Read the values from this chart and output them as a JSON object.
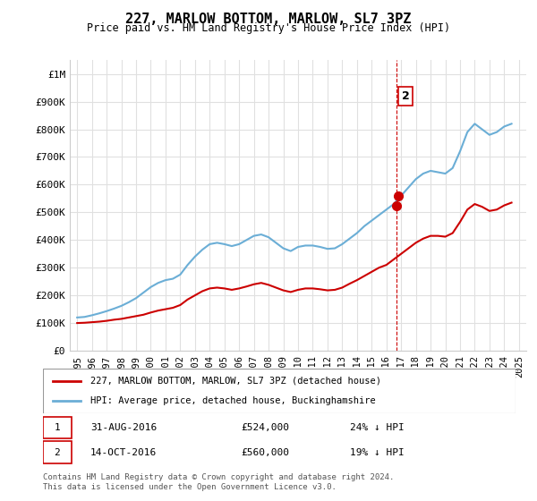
{
  "title": "227, MARLOW BOTTOM, MARLOW, SL7 3PZ",
  "subtitle": "Price paid vs. HM Land Registry's House Price Index (HPI)",
  "xlabel": "",
  "ylabel": "",
  "ylim": [
    0,
    1050000
  ],
  "yticks": [
    0,
    100000,
    200000,
    300000,
    400000,
    500000,
    600000,
    700000,
    800000,
    900000,
    1000000
  ],
  "ytick_labels": [
    "£0",
    "£100K",
    "£200K",
    "£300K",
    "£400K",
    "£500K",
    "£600K",
    "£700K",
    "£800K",
    "£900K",
    "£1M"
  ],
  "hpi_color": "#6baed6",
  "price_color": "#cc0000",
  "marker1_color": "#cc0000",
  "marker2_color": "#cc0000",
  "vline_color": "#cc0000",
  "background_color": "#ffffff",
  "grid_color": "#e0e0e0",
  "transaction1": {
    "date": "31-AUG-2016",
    "price": 524000,
    "hpi_diff": "24% ↓ HPI",
    "label": "1"
  },
  "transaction2": {
    "date": "14-OCT-2016",
    "price": 560000,
    "hpi_diff": "19% ↓ HPI",
    "label": "2"
  },
  "legend_line1": "227, MARLOW BOTTOM, MARLOW, SL7 3PZ (detached house)",
  "legend_line2": "HPI: Average price, detached house, Buckinghamshire",
  "footer": "Contains HM Land Registry data © Crown copyright and database right 2024.\nThis data is licensed under the Open Government Licence v3.0.",
  "hpi_x": [
    1995.0,
    1995.5,
    1996.0,
    1996.5,
    1997.0,
    1997.5,
    1998.0,
    1998.5,
    1999.0,
    1999.5,
    2000.0,
    2000.5,
    2001.0,
    2001.5,
    2002.0,
    2002.5,
    2003.0,
    2003.5,
    2004.0,
    2004.5,
    2005.0,
    2005.5,
    2006.0,
    2006.5,
    2007.0,
    2007.5,
    2008.0,
    2008.5,
    2009.0,
    2009.5,
    2010.0,
    2010.5,
    2011.0,
    2011.5,
    2012.0,
    2012.5,
    2013.0,
    2013.5,
    2014.0,
    2014.5,
    2015.0,
    2015.5,
    2016.0,
    2016.5,
    2017.0,
    2017.5,
    2018.0,
    2018.5,
    2019.0,
    2019.5,
    2020.0,
    2020.5,
    2021.0,
    2021.5,
    2022.0,
    2022.5,
    2023.0,
    2023.5,
    2024.0,
    2024.5
  ],
  "hpi_y": [
    120000,
    122000,
    128000,
    135000,
    143000,
    152000,
    162000,
    175000,
    190000,
    210000,
    230000,
    245000,
    255000,
    260000,
    275000,
    310000,
    340000,
    365000,
    385000,
    390000,
    385000,
    378000,
    385000,
    400000,
    415000,
    420000,
    410000,
    390000,
    370000,
    360000,
    375000,
    380000,
    380000,
    375000,
    368000,
    370000,
    385000,
    405000,
    425000,
    450000,
    470000,
    490000,
    510000,
    530000,
    560000,
    590000,
    620000,
    640000,
    650000,
    645000,
    640000,
    660000,
    720000,
    790000,
    820000,
    800000,
    780000,
    790000,
    810000,
    820000
  ],
  "price_x": [
    1995.0,
    1995.5,
    1996.0,
    1996.5,
    1997.0,
    1997.5,
    1998.0,
    1998.5,
    1999.0,
    1999.5,
    2000.0,
    2000.5,
    2001.0,
    2001.5,
    2002.0,
    2002.5,
    2003.0,
    2003.5,
    2004.0,
    2004.5,
    2005.0,
    2005.5,
    2006.0,
    2006.5,
    2007.0,
    2007.5,
    2008.0,
    2008.5,
    2009.0,
    2009.5,
    2010.0,
    2010.5,
    2011.0,
    2011.5,
    2012.0,
    2012.5,
    2013.0,
    2013.5,
    2014.0,
    2014.5,
    2015.0,
    2015.5,
    2016.0,
    2016.5,
    2017.0,
    2017.5,
    2018.0,
    2018.5,
    2019.0,
    2019.5,
    2020.0,
    2020.5,
    2021.0,
    2021.5,
    2022.0,
    2022.5,
    2023.0,
    2023.5,
    2024.0,
    2024.5
  ],
  "price_y": [
    100000,
    101000,
    103000,
    105000,
    108000,
    112000,
    115000,
    120000,
    125000,
    130000,
    138000,
    145000,
    150000,
    155000,
    165000,
    185000,
    200000,
    215000,
    225000,
    228000,
    225000,
    220000,
    225000,
    232000,
    240000,
    245000,
    238000,
    228000,
    218000,
    212000,
    220000,
    225000,
    225000,
    222000,
    218000,
    220000,
    228000,
    242000,
    255000,
    270000,
    285000,
    300000,
    310000,
    330000,
    350000,
    370000,
    390000,
    405000,
    415000,
    415000,
    412000,
    425000,
    465000,
    510000,
    530000,
    520000,
    505000,
    510000,
    525000,
    535000
  ],
  "xlim": [
    1994.5,
    2025.5
  ],
  "xtick_years": [
    1995,
    1996,
    1997,
    1998,
    1999,
    2000,
    2001,
    2002,
    2003,
    2004,
    2005,
    2006,
    2007,
    2008,
    2009,
    2010,
    2011,
    2012,
    2013,
    2014,
    2015,
    2016,
    2017,
    2018,
    2019,
    2020,
    2021,
    2022,
    2023,
    2024,
    2025
  ],
  "marker1_x": 2016.67,
  "marker1_y": 524000,
  "marker2_x": 2016.79,
  "marker2_y": 560000
}
